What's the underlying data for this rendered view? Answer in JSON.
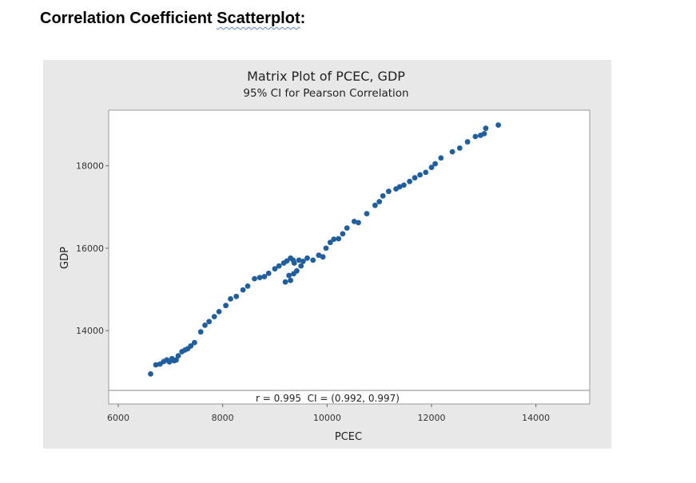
{
  "page": {
    "heading_part1": "Correlation Coefficient ",
    "heading_part2": "Scatterplot",
    "heading_part3": ":"
  },
  "chart_data": {
    "type": "scatter",
    "title": "Matrix Plot of PCEC, GDP",
    "subtitle": "95% CI for Pearson Correlation",
    "xlabel": "PCEC",
    "ylabel": "GDP",
    "xlim": [
      6000,
      15000
    ],
    "ylim": [
      12550,
      19350
    ],
    "xticks": [
      6000,
      8000,
      10000,
      12000,
      14000
    ],
    "yticks": [
      14000,
      16000,
      18000
    ],
    "annotation": "r = 0.995  CI = (0.992, 0.997)",
    "marker_color": "#1f5fa0",
    "points": [
      [
        6620,
        12950
      ],
      [
        6720,
        13170
      ],
      [
        6800,
        13190
      ],
      [
        6870,
        13250
      ],
      [
        6930,
        13290
      ],
      [
        6980,
        13240
      ],
      [
        7030,
        13320
      ],
      [
        7070,
        13270
      ],
      [
        7110,
        13290
      ],
      [
        7150,
        13390
      ],
      [
        7220,
        13490
      ],
      [
        7280,
        13530
      ],
      [
        7330,
        13560
      ],
      [
        7390,
        13630
      ],
      [
        7460,
        13710
      ],
      [
        7580,
        13970
      ],
      [
        7660,
        14130
      ],
      [
        7740,
        14220
      ],
      [
        7840,
        14340
      ],
      [
        7930,
        14460
      ],
      [
        8060,
        14610
      ],
      [
        8150,
        14770
      ],
      [
        8260,
        14830
      ],
      [
        8390,
        14990
      ],
      [
        8480,
        15080
      ],
      [
        8610,
        15260
      ],
      [
        8710,
        15290
      ],
      [
        8800,
        15310
      ],
      [
        8880,
        15390
      ],
      [
        9000,
        15500
      ],
      [
        9080,
        15570
      ],
      [
        9170,
        15640
      ],
      [
        9230,
        15690
      ],
      [
        9300,
        15760
      ],
      [
        9350,
        15710
      ],
      [
        9370,
        15640
      ],
      [
        9200,
        15180
      ],
      [
        9300,
        15220
      ],
      [
        9270,
        15340
      ],
      [
        9360,
        15380
      ],
      [
        9420,
        15450
      ],
      [
        9460,
        15710
      ],
      [
        9500,
        15570
      ],
      [
        9540,
        15680
      ],
      [
        9620,
        15760
      ],
      [
        9730,
        15710
      ],
      [
        9840,
        15830
      ],
      [
        9920,
        15790
      ],
      [
        9980,
        16000
      ],
      [
        10060,
        16140
      ],
      [
        10130,
        16220
      ],
      [
        10220,
        16230
      ],
      [
        10300,
        16350
      ],
      [
        10380,
        16490
      ],
      [
        10520,
        16650
      ],
      [
        10600,
        16620
      ],
      [
        10760,
        16840
      ],
      [
        10920,
        17040
      ],
      [
        11000,
        17130
      ],
      [
        11070,
        17270
      ],
      [
        11180,
        17380
      ],
      [
        11320,
        17440
      ],
      [
        11390,
        17490
      ],
      [
        11470,
        17530
      ],
      [
        11580,
        17620
      ],
      [
        11680,
        17710
      ],
      [
        11780,
        17780
      ],
      [
        11890,
        17840
      ],
      [
        12000,
        17960
      ],
      [
        12070,
        18050
      ],
      [
        12180,
        18190
      ],
      [
        12400,
        18340
      ],
      [
        12540,
        18430
      ],
      [
        12690,
        18580
      ],
      [
        12840,
        18710
      ],
      [
        12940,
        18740
      ],
      [
        13010,
        18780
      ],
      [
        13040,
        18910
      ],
      [
        13280,
        18990
      ]
    ]
  }
}
